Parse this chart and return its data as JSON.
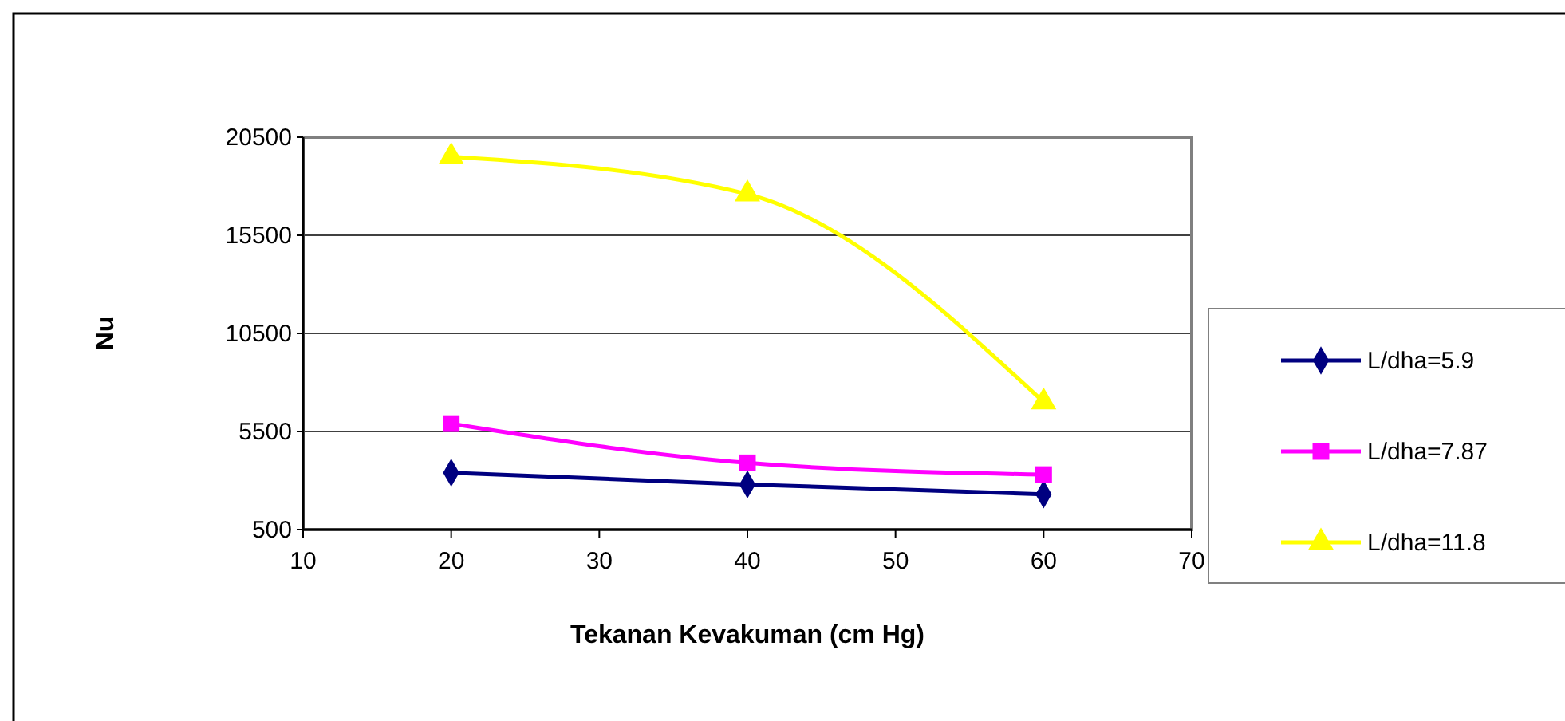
{
  "chart_data": {
    "type": "line",
    "xlabel": "Tekanan Kevakuman (cm Hg)",
    "ylabel": "Nu",
    "xlim": [
      10,
      70
    ],
    "xticks": [
      10,
      20,
      30,
      40,
      50,
      60,
      70
    ],
    "ylim": [
      500,
      20500
    ],
    "yticks": [
      500,
      5500,
      10500,
      15500,
      20500
    ],
    "grid": "y",
    "legend": "right",
    "series": [
      {
        "name": "L/dha=5.9",
        "color": "#000080",
        "marker": "diamond",
        "x": [
          20,
          40,
          60
        ],
        "values": [
          3400,
          2800,
          2300
        ]
      },
      {
        "name": "L/dha=7.87",
        "color": "#ff00ff",
        "marker": "square",
        "x": [
          20,
          40,
          60
        ],
        "values": [
          5900,
          3900,
          3300
        ]
      },
      {
        "name": "L/dha=11.8",
        "color": "#ffff00",
        "marker": "triangle",
        "x": [
          20,
          40,
          60
        ],
        "values": [
          19500,
          17600,
          7000
        ]
      }
    ]
  }
}
